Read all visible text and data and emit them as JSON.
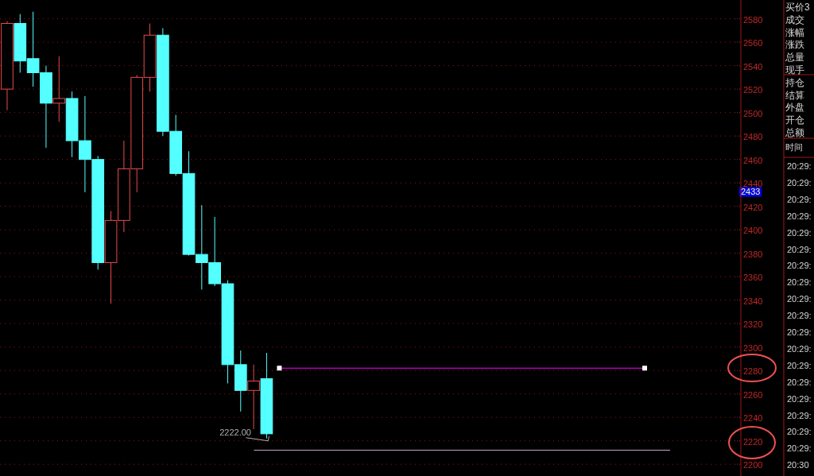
{
  "chart_data": {
    "type": "candlestick",
    "categories": [
      null,
      null,
      null,
      null,
      null,
      null,
      null,
      null,
      null,
      null,
      null,
      null,
      null,
      null,
      null,
      null,
      null,
      null,
      null,
      null,
      null,
      null,
      null,
      null,
      null,
      null,
      null,
      null,
      null,
      null,
      null,
      null,
      null,
      null,
      null,
      null,
      null,
      null,
      null,
      null,
      null,
      null,
      null,
      null,
      null,
      null,
      null,
      null,
      null,
      null,
      null,
      null,
      null,
      null,
      null,
      null,
      null
    ],
    "ohlc": [
      [
        2520,
        2578,
        2502,
        2576
      ],
      [
        2576,
        2584,
        2534,
        2544
      ],
      [
        2546,
        2586,
        2522,
        2534
      ],
      [
        2534,
        2540,
        2470,
        2508
      ],
      [
        2508,
        2548,
        2492,
        2512
      ],
      [
        2512,
        2518,
        2462,
        2476
      ],
      [
        2476,
        2514,
        2432,
        2460
      ],
      [
        2460,
        2463,
        2366,
        2372
      ],
      [
        2372,
        2416,
        2337,
        2408
      ],
      [
        2408,
        2476,
        2398,
        2452
      ],
      [
        2452,
        2532,
        2432,
        2530
      ],
      [
        2530,
        2576,
        2518,
        2566
      ],
      [
        2566,
        2572,
        2480,
        2484
      ],
      [
        2484,
        2498,
        2446,
        2448
      ],
      [
        2448,
        2467,
        2378,
        2379
      ],
      [
        2379,
        2421,
        2349,
        2372
      ],
      [
        2372,
        2411,
        2352,
        2354
      ],
      [
        2354,
        2357,
        2269,
        2285
      ],
      [
        2285,
        2297,
        2245,
        2263
      ],
      [
        2263,
        2285,
        2230,
        2271
      ],
      [
        2273,
        2295,
        2222,
        2226
      ],
      null,
      null,
      null,
      null,
      null,
      null,
      null,
      null,
      null,
      null,
      null,
      null,
      null,
      null,
      null,
      null,
      null,
      null,
      null,
      null,
      null,
      null,
      null,
      null,
      null,
      null,
      null,
      null,
      null,
      null,
      null,
      null,
      null,
      null,
      null,
      null
    ],
    "colors": [
      "#e84a4a",
      "#54ffff",
      "#54ffff",
      "#54ffff",
      "#e84a4a",
      "#54ffff",
      "#54ffff",
      "#54ffff",
      "#e84a4a",
      "#e84a4a",
      "#e84a4a",
      "#e84a4a",
      "#54ffff",
      "#54ffff",
      "#54ffff",
      "#54ffff",
      "#54ffff",
      "#54ffff",
      "#54ffff",
      "#e84a4a",
      "#54ffff",
      null,
      null,
      null,
      null,
      null,
      null,
      null,
      null,
      null,
      null,
      null,
      null,
      null,
      null,
      null,
      null,
      null,
      null,
      null,
      null,
      null,
      null,
      null,
      null,
      null,
      null,
      null,
      null,
      null,
      null,
      null,
      null,
      null,
      null,
      null,
      null
    ],
    "ylim": [
      2190,
      2596
    ],
    "yticks": [
      2200,
      2220,
      2240,
      2260,
      2280,
      2300,
      2320,
      2340,
      2360,
      2380,
      2400,
      2420,
      2440,
      2460,
      2480,
      2500,
      2520,
      2540,
      2560,
      2580
    ],
    "grid": "y",
    "ref_lines": [
      {
        "axis": "y",
        "value": 2282,
        "color": "#ff00ff"
      },
      {
        "axis": "y",
        "value": 2212,
        "color": "#c8a8c8"
      }
    ],
    "annotations": [
      "2222.00",
      {
        "text": "2433",
        "y": 2433
      },
      "买价3",
      "成交",
      "涨幅",
      "涨跌",
      "总量",
      "现手",
      "持仓",
      "结算",
      "外盘",
      "开仓",
      "总额",
      "时间",
      "20:29:",
      "20:29:",
      "20:29:",
      "20:29:",
      "20:29:",
      "20:29:",
      "20:29:",
      "20:29:",
      "20:29:",
      "20:29:",
      "20:29:",
      "20:29:",
      "20:29:",
      "20:29:",
      "20:29:",
      "20:29:",
      "20:29:",
      "20:29:",
      "20:30"
    ]
  }
}
